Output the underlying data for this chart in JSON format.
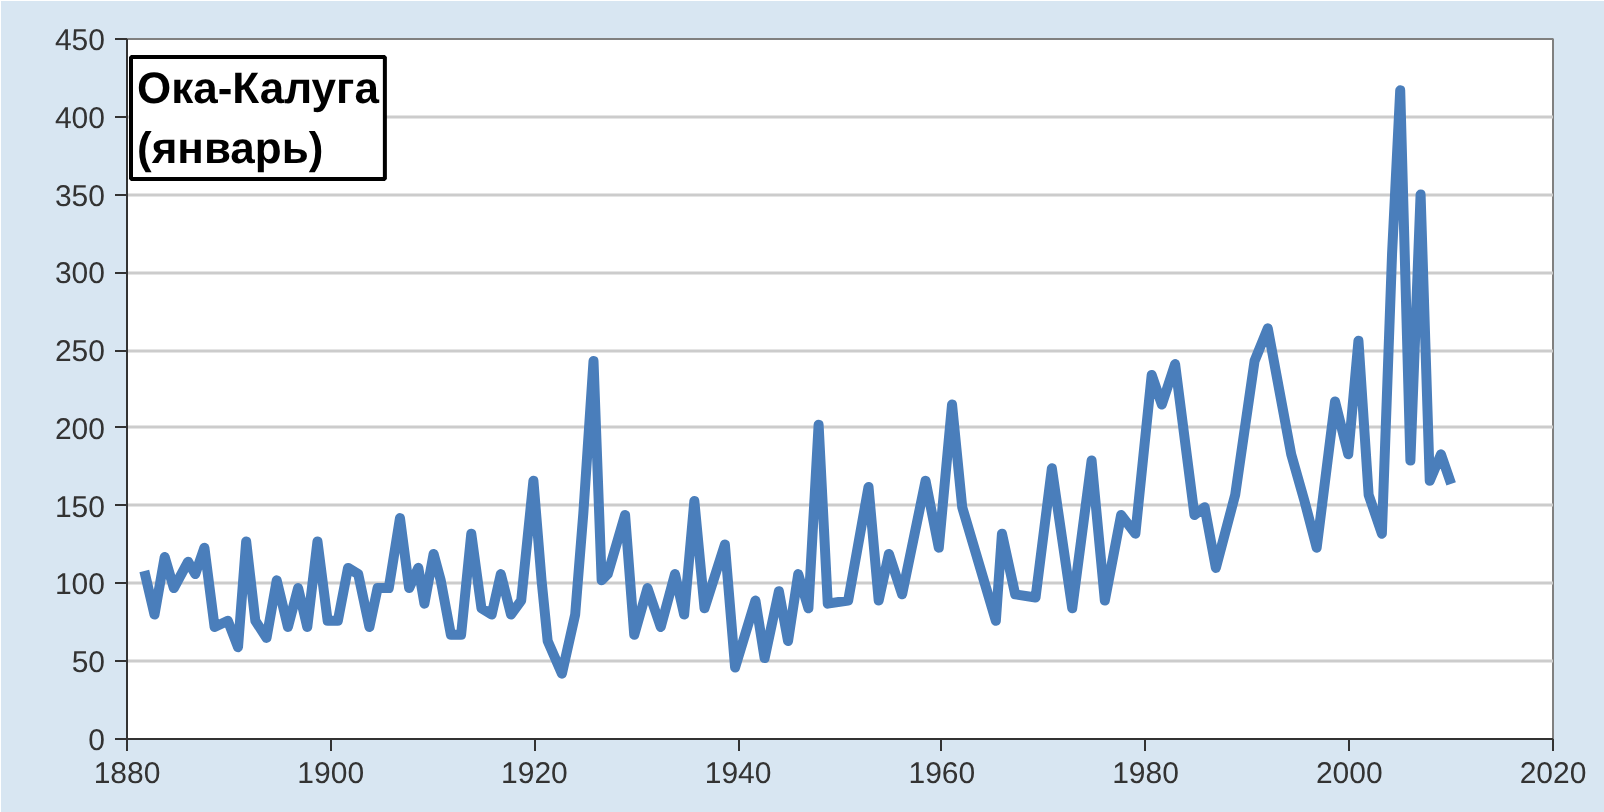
{
  "chart_data": {
    "type": "line",
    "title": "Ока-Калуга\n(январь)",
    "x": [
      1881.7,
      1882.7,
      1883.7,
      1884.6,
      1886,
      1886.7,
      1887.6,
      1888.6,
      1889.9,
      1890.9,
      1891.7,
      1892.6,
      1893.7,
      1894.7,
      1895.8,
      1896.8,
      1897.7,
      1898.7,
      1899.7,
      1900.7,
      1901.7,
      1902.7,
      1903.8,
      1904.6,
      1905.7,
      1906.8,
      1907.7,
      1908.6,
      1909.2,
      1910.1,
      1910.8,
      1911.8,
      1912.8,
      1913.8,
      1914.8,
      1915.8,
      1916.7,
      1917.7,
      1918.7,
      1919.9,
      1920.7,
      1921.3,
      1922.7,
      1924,
      1924.8,
      1925.8,
      1926.6,
      1927.2,
      1928.9,
      1929.8,
      1931.1,
      1932.4,
      1933.8,
      1934.7,
      1935.7,
      1936.7,
      1938.7,
      1939.7,
      1941.7,
      1942.6,
      1944,
      1944.9,
      1945.9,
      1946.9,
      1947.9,
      1948.8,
      1950.8,
      1952.8,
      1953.8,
      1954.8,
      1956.1,
      1958.4,
      1959.7,
      1961,
      1962,
      1965.3,
      1965.9,
      1967.2,
      1969.2,
      1970.8,
      1972.8,
      1974.7,
      1976,
      1977.6,
      1979,
      1980.6,
      1981.6,
      1982.9,
      1984.8,
      1985.8,
      1986.9,
      1988.8,
      1990.7,
      1992,
      1994.3,
      1995.6,
      1996.8,
      1998.6,
      1999.9,
      2000.9,
      2001.9,
      2003.2,
      2004.2,
      2005,
      2006,
      2007,
      2007.9,
      2009,
      2010
    ],
    "series": [
      {
        "color": "#4a7ebb",
        "values": [
          108,
          80,
          117,
          97,
          114,
          106,
          123,
          72,
          76,
          59,
          127,
          76,
          65,
          102,
          72,
          97,
          72,
          127,
          76,
          76,
          110,
          106,
          72,
          97,
          97,
          142,
          97,
          110,
          87,
          119,
          102,
          67,
          67,
          132,
          84,
          80,
          106,
          80,
          89,
          166,
          102,
          63,
          42,
          80,
          145,
          243,
          102,
          106,
          144,
          67,
          97,
          72,
          106,
          80,
          153,
          84,
          125,
          46,
          89,
          52,
          95,
          63,
          106,
          84,
          202,
          87,
          89,
          162,
          89,
          119,
          93,
          166,
          123,
          215,
          149,
          76,
          132,
          93,
          91,
          174,
          84,
          179,
          89,
          144,
          132,
          234,
          215,
          241,
          144,
          149,
          110,
          157,
          243,
          264,
          183,
          153,
          123,
          217,
          183,
          256,
          157,
          132,
          312,
          417,
          179,
          350,
          166,
          183,
          164
        ]
      }
    ],
    "xlim": [
      1880,
      2020
    ],
    "xticks": [
      1880,
      1900,
      1920,
      1940,
      1960,
      1980,
      2000,
      2020
    ],
    "ylim": [
      0,
      450
    ],
    "yticks": [
      0,
      50,
      100,
      150,
      200,
      250,
      300,
      350,
      400,
      450
    ],
    "grid": "y",
    "marker": "none",
    "line_style": "solid"
  }
}
